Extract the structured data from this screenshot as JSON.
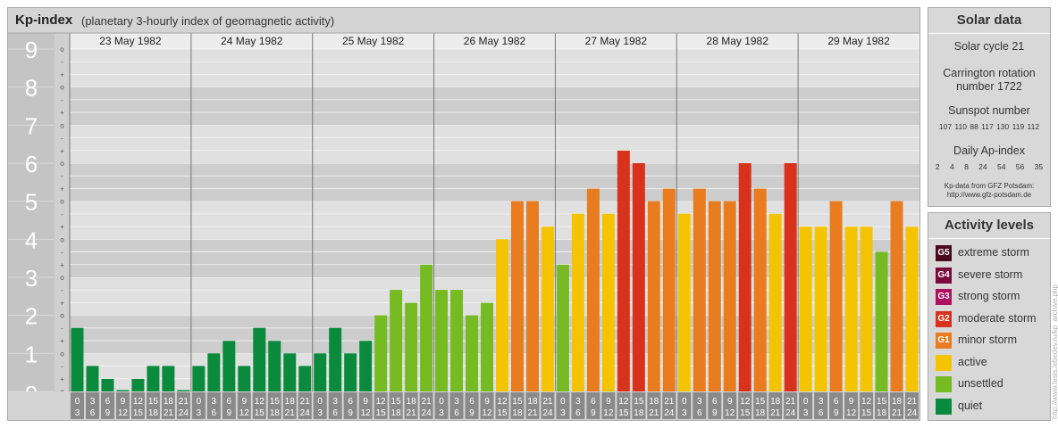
{
  "title": {
    "main": "Kp-index",
    "sub": "(planetary 3-hourly index of geomagnetic activity)"
  },
  "chart_data": {
    "type": "bar",
    "title": "Kp-index",
    "subtitle": "(planetary 3-hourly index of geomagnetic activity)",
    "ylim": [
      0,
      9
    ],
    "y_ticks": [
      "0",
      "1",
      "2",
      "3",
      "4",
      "5",
      "6",
      "7",
      "8",
      "9"
    ],
    "y_subticks": [
      "o",
      "+",
      "-"
    ],
    "days": [
      "23 May 1982",
      "24 May 1982",
      "25 May 1982",
      "26 May 1982",
      "27 May 1982",
      "28 May 1982",
      "29 May 1982"
    ],
    "interval_labels": [
      [
        "0",
        "3"
      ],
      [
        "3",
        "6"
      ],
      [
        "6",
        "9"
      ],
      [
        "9",
        "12"
      ],
      [
        "12",
        "15"
      ],
      [
        "15",
        "18"
      ],
      [
        "18",
        "21"
      ],
      [
        "21",
        "24"
      ]
    ],
    "values": [
      [
        1.67,
        0.67,
        0.33,
        0.0,
        0.33,
        0.67,
        0.67,
        0.0
      ],
      [
        0.67,
        1.0,
        1.33,
        0.67,
        1.67,
        1.33,
        1.0,
        0.67
      ],
      [
        1.0,
        1.67,
        1.0,
        1.33,
        2.0,
        2.67,
        2.33,
        3.33
      ],
      [
        2.67,
        2.67,
        2.0,
        2.33,
        4.0,
        5.0,
        5.0,
        4.33
      ],
      [
        3.33,
        4.67,
        5.33,
        4.67,
        6.33,
        6.0,
        5.0,
        5.33
      ],
      [
        4.67,
        5.33,
        5.0,
        5.0,
        6.0,
        5.33,
        4.67,
        6.0
      ],
      [
        4.33,
        4.33,
        5.0,
        4.33,
        4.33,
        3.67,
        5.0,
        4.33
      ]
    ],
    "colors": {
      "quiet": "#0a8a3c",
      "unsettled": "#77bb22",
      "active": "#f5c400",
      "minor": "#e87c1e",
      "moderate": "#d8321c"
    },
    "grid": true
  },
  "solar": {
    "title": "Solar data",
    "cycle": "Solar cycle 21",
    "carrington_line1": "Carrington rotation",
    "carrington_line2": "number 1722",
    "sunspot_title": "Sunspot number",
    "sunspot_values": "107 110 88 117 130 119 112",
    "ap_title": "Daily Ap-index",
    "ap_values": "2 4 8 24 54 56 35",
    "source_line1": "Kp-data from GFZ Potsdam:",
    "source_line2": "http://www.gfz-potsdam.de"
  },
  "activity": {
    "title": "Activity levels",
    "levels": [
      {
        "code": "G5",
        "label": "extreme storm",
        "color": "#4a0a1e"
      },
      {
        "code": "G4",
        "label": "severe storm",
        "color": "#7a0a3c"
      },
      {
        "code": "G3",
        "label": "strong storm",
        "color": "#b01060"
      },
      {
        "code": "G2",
        "label": "moderate storm",
        "color": "#d8321c"
      },
      {
        "code": "G1",
        "label": "minor storm",
        "color": "#e87c1e"
      },
      {
        "code": "",
        "label": "active",
        "color": "#f5c400"
      },
      {
        "code": "",
        "label": "unsettled",
        "color": "#77bb22"
      },
      {
        "code": "",
        "label": "quiet",
        "color": "#0a8a3c"
      }
    ]
  },
  "watermark": "http://www.tesis.lebedev.ru/kp_archive.php"
}
